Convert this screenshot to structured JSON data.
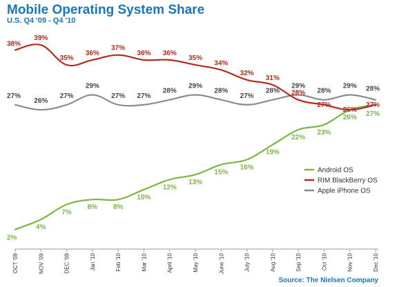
{
  "chart_data": {
    "type": "line",
    "title": "Mobile Operating System Share",
    "subtitle": "U.S. Q4 '09 - Q4 '10",
    "source": "Source: The Nielsen Company",
    "categories": [
      "OCT '09",
      "NOV '09",
      "DEC '09",
      "Jan '10",
      "Feb '10",
      "Mar '10",
      "April '10",
      "May '10",
      "June '10",
      "July '10",
      "Aug '10",
      "Sep '10",
      "Oct '10",
      "Nov '10",
      "Dec '10"
    ],
    "ylim": [
      0,
      40
    ],
    "grid": false,
    "legend_position": "right",
    "series": [
      {
        "name": "Android OS",
        "color": "#7bb543",
        "values": [
          2,
          4,
          7,
          8,
          8,
          10,
          12,
          13,
          15,
          16,
          19,
          22,
          23,
          26,
          27
        ],
        "labels": [
          "2%",
          "4%",
          "7%",
          "8%",
          "8%",
          "10%",
          "12%",
          "13%",
          "15%",
          "16%",
          "19%",
          "22%",
          "23%",
          "26%",
          "27%"
        ]
      },
      {
        "name": "RIM BlackBerry OS",
        "color": "#b22a1d",
        "values": [
          38,
          39,
          35,
          36,
          37,
          36,
          36,
          35,
          34,
          32,
          31,
          28,
          27,
          26,
          27
        ],
        "labels": [
          "38%",
          "39%",
          "35%",
          "36%",
          "37%",
          "36%",
          "36%",
          "35%",
          "34%",
          "32%",
          "31%",
          "28%",
          "27%",
          "26%",
          "27%"
        ]
      },
      {
        "name": "Apple iPhone OS",
        "color": "#8c8c8c",
        "values": [
          27,
          26,
          27,
          29,
          27,
          27,
          28,
          29,
          28,
          27,
          28,
          29,
          28,
          29,
          28
        ],
        "labels": [
          "27%",
          "26%",
          "27%",
          "29%",
          "27%",
          "27%",
          "28%",
          "29%",
          "28%",
          "27%",
          "28%",
          "29%",
          "28%",
          "29%",
          "28%"
        ]
      }
    ]
  }
}
